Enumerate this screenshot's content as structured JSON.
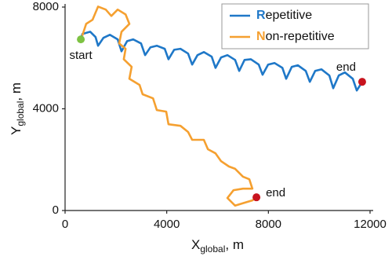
{
  "chart_data": {
    "type": "line",
    "x_label": {
      "main": "X",
      "sub": "global",
      "unit": ", m"
    },
    "y_label": {
      "main": "Y",
      "sub": "global",
      "unit": ", m"
    },
    "xlim": [
      0,
      12000
    ],
    "ylim": [
      0,
      8000
    ],
    "xticks": [
      0,
      4000,
      8000,
      12000
    ],
    "yticks": [
      0,
      4000,
      8000
    ],
    "legend": "upper right",
    "series": [
      {
        "name": "Repetitive",
        "color": "#1f78c8",
        "x": [
          620,
          680,
          990,
          1200,
          1300,
          1510,
          1760,
          2070,
          2220,
          2440,
          2680,
          2990,
          3150,
          3360,
          3610,
          3920,
          4070,
          4290,
          4540,
          4840,
          5000,
          5210,
          5460,
          5770,
          5920,
          6140,
          6390,
          6690,
          6850,
          7060,
          7310,
          7620,
          7770,
          7990,
          8240,
          8550,
          8700,
          8920,
          9160,
          9470,
          9630,
          9840,
          10090,
          10400,
          10550,
          10770,
          11010,
          11320,
          11480,
          11690
        ],
        "values": [
          6730,
          6940,
          7030,
          6820,
          6480,
          6790,
          6910,
          6730,
          6260,
          6660,
          6730,
          6570,
          6110,
          6420,
          6480,
          6360,
          5950,
          6320,
          6360,
          6170,
          5740,
          6110,
          6230,
          6050,
          5610,
          6020,
          6110,
          5920,
          5490,
          5920,
          5950,
          5740,
          5340,
          5740,
          5800,
          5610,
          5180,
          5650,
          5710,
          5490,
          5060,
          5490,
          5550,
          5310,
          4810,
          5310,
          5430,
          5180,
          4720,
          5060
        ]
      },
      {
        "name": "Non-repetitive",
        "color": "#f5a030",
        "x": [
          680,
          830,
          1080,
          1300,
          1600,
          1820,
          2070,
          2380,
          2530,
          2220,
          2130,
          2380,
          2310,
          2620,
          2530,
          2930,
          3050,
          3460,
          3610,
          3980,
          4070,
          4540,
          4840,
          5000,
          5460,
          5620,
          5920,
          6140,
          6450,
          6690,
          7000,
          7250,
          7370,
          7000,
          6630,
          6390,
          6690,
          7070,
          7370,
          7530
        ],
        "values": [
          6880,
          7340,
          7500,
          8020,
          7900,
          7650,
          7900,
          7710,
          7340,
          7030,
          6570,
          6360,
          5950,
          5650,
          5180,
          4940,
          4570,
          4410,
          3950,
          3890,
          3390,
          3330,
          3090,
          2780,
          2780,
          2410,
          2250,
          1940,
          1730,
          1640,
          1330,
          1230,
          860,
          860,
          800,
          490,
          190,
          310,
          400,
          520
        ]
      }
    ],
    "markers": [
      {
        "label": "start",
        "x": 620,
        "y": 6730,
        "color": "#7dc242"
      },
      {
        "label": "end",
        "x": 11690,
        "y": 5060,
        "color": "#c8141e"
      },
      {
        "label": "end",
        "x": 7530,
        "y": 520,
        "color": "#c8141e"
      }
    ]
  }
}
